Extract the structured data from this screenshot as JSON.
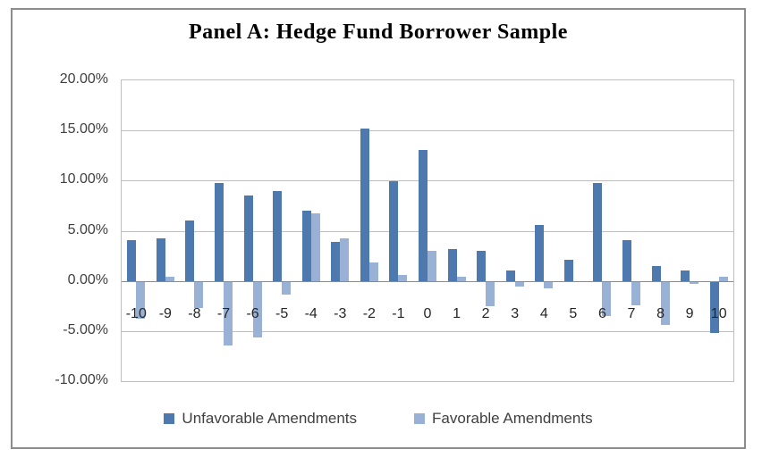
{
  "figure": {
    "title": "Panel A: Hedge Fund Borrower Sample"
  },
  "chart_data": {
    "type": "bar",
    "title": "Panel A: Hedge Fund Borrower Sample",
    "categories": [
      "-10",
      "-9",
      "-8",
      "-7",
      "-6",
      "-5",
      "-4",
      "-3",
      "-2",
      "-1",
      "0",
      "1",
      "2",
      "3",
      "4",
      "5",
      "6",
      "7",
      "8",
      "9",
      "10"
    ],
    "series": [
      {
        "name": "Unfavorable Amendments",
        "color": "#4d79ae",
        "values": [
          4.1,
          4.2,
          6.0,
          9.8,
          8.5,
          9.0,
          7.0,
          3.9,
          15.2,
          9.9,
          13.1,
          3.2,
          3.0,
          1.0,
          5.6,
          2.1,
          9.8,
          4.1,
          1.5,
          1.0,
          -5.2
        ]
      },
      {
        "name": "Favorable Amendments",
        "color": "#98b1d5",
        "values": [
          -3.8,
          0.4,
          -2.7,
          -6.4,
          -5.6,
          -1.4,
          6.7,
          4.2,
          1.8,
          0.6,
          3.0,
          0.4,
          -2.5,
          -0.6,
          -0.7,
          -0.1,
          -3.5,
          -2.4,
          -4.4,
          -0.3,
          0.4
        ]
      }
    ],
    "ylabel": "",
    "xlabel": "",
    "ylim": [
      -10,
      20
    ],
    "y_ticks": [
      20,
      15,
      10,
      5,
      0,
      -5,
      -10
    ],
    "y_tick_labels": [
      "20.00%",
      "15.00%",
      "10.00%",
      "5.00%",
      "0.00%",
      "-5.00%",
      "-10.00%"
    ],
    "grid": true,
    "legend_position": "bottom"
  },
  "legend": {
    "items": [
      {
        "label": "Unfavorable Amendments",
        "color": "#4d79ae"
      },
      {
        "label": "Favorable Amendments",
        "color": "#98b1d5"
      }
    ]
  },
  "colors": {
    "bar_dark": "#4d79ae",
    "bar_light": "#98b1d5",
    "gridline": "#bfbfbf",
    "zero_line": "#8c8c8c",
    "outer_border": "#8c8c8c"
  }
}
